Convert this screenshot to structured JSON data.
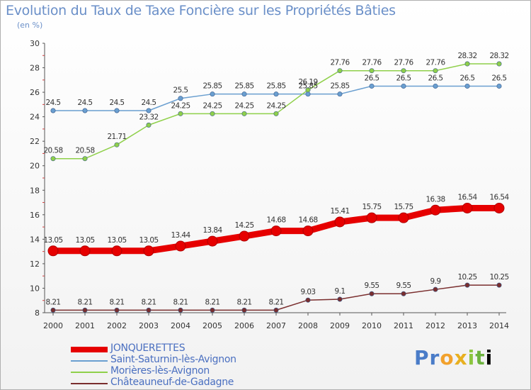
{
  "title": "Evolution du Taux de Taxe Foncière sur les Propriétés Bâties",
  "subtitle": "(en %)",
  "brand": "Proxiti",
  "chart_data": {
    "type": "line",
    "title": "Evolution du Taux de Taxe Foncière sur les Propriétés Bâties",
    "ylabel": "(en %)",
    "xlabel": "",
    "ylim": [
      8,
      30
    ],
    "yticks": [
      8,
      10,
      12,
      14,
      16,
      18,
      20,
      22,
      24,
      26,
      28,
      30
    ],
    "grid": false,
    "legend_position": "bottom-left",
    "categories": [
      "2000",
      "2001",
      "2002",
      "2003",
      "2004",
      "2005",
      "2006",
      "2007",
      "2008",
      "2009",
      "2010",
      "2011",
      "2012",
      "2013",
      "2014"
    ],
    "series": [
      {
        "name": "JONQUERETTES",
        "color": "#e60000",
        "bold": true,
        "values": [
          13.05,
          13.05,
          13.05,
          13.05,
          13.44,
          13.84,
          14.25,
          14.68,
          14.68,
          15.41,
          15.75,
          15.75,
          16.38,
          16.54,
          16.54
        ],
        "labels": [
          "13.05",
          "13.05",
          "13.05",
          "13.05",
          "13.44",
          "13.84",
          "14.25",
          "14.68",
          "14.68",
          "15.41",
          "15.75",
          "15.75",
          "16.38",
          "16.54",
          "16.54"
        ]
      },
      {
        "name": "Saint-Saturnin-lès-Avignon",
        "color": "#6a9fd0",
        "bold": false,
        "values": [
          24.5,
          24.5,
          24.5,
          24.5,
          25.5,
          25.85,
          25.85,
          25.85,
          25.85,
          25.85,
          26.5,
          26.5,
          26.5,
          26.5,
          26.5
        ],
        "labels": [
          "24.5",
          "24.5",
          "24.5",
          "24.5",
          "25.5",
          "25.85",
          "25.85",
          "25.85",
          "25.85",
          "25.85",
          "26.5",
          "26.5",
          "26.5",
          "26.5",
          "26.5"
        ]
      },
      {
        "name": "Morières-lès-Avignon",
        "color": "#8fd04a",
        "bold": false,
        "values": [
          20.58,
          20.58,
          21.71,
          23.32,
          24.25,
          24.25,
          24.25,
          24.25,
          26.19,
          27.76,
          27.76,
          27.76,
          27.76,
          28.32,
          28.32
        ],
        "labels": [
          "20.58",
          "20.58",
          "21.71",
          "23.32",
          "24.25",
          "24.25",
          "24.25",
          "24.25",
          "26.19",
          "27.76",
          "27.76",
          "27.76",
          "27.76",
          "28.32",
          "28.32"
        ]
      },
      {
        "name": "Châteauneuf-de-Gadagne",
        "color": "#7a2e2e",
        "bold": false,
        "values": [
          8.21,
          8.21,
          8.21,
          8.21,
          8.21,
          8.21,
          8.21,
          8.21,
          9.03,
          9.1,
          9.55,
          9.55,
          9.9,
          10.25,
          10.25
        ],
        "labels": [
          "8.21",
          "8.21",
          "8.21",
          "8.21",
          "8.21",
          "8.21",
          "8.21",
          "8.21",
          "9.03",
          "9.1",
          "9.55",
          "9.55",
          "9.9",
          "10.25",
          "10.25"
        ]
      }
    ]
  }
}
